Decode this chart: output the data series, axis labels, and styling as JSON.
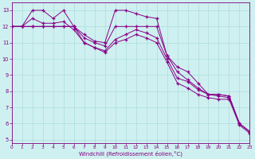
{
  "xlabel": "Windchill (Refroidissement éolien,°C)",
  "background_color": "#cff0f0",
  "grid_color": "#aadddd",
  "line_color": "#880088",
  "xlim": [
    0,
    23
  ],
  "ylim": [
    4.8,
    13.5
  ],
  "yticks": [
    5,
    6,
    7,
    8,
    9,
    10,
    11,
    12,
    13
  ],
  "xticks": [
    0,
    1,
    2,
    3,
    4,
    5,
    6,
    7,
    8,
    9,
    10,
    11,
    12,
    13,
    14,
    15,
    16,
    17,
    18,
    19,
    20,
    21,
    22,
    23
  ],
  "series": [
    [
      12.0,
      12.0,
      13.0,
      13.0,
      12.5,
      13.0,
      12.0,
      11.5,
      11.1,
      11.0,
      13.0,
      13.0,
      12.8,
      12.6,
      12.5,
      10.2,
      9.5,
      9.2,
      8.5,
      7.8,
      7.8,
      7.7,
      6.0,
      5.5
    ],
    [
      12.0,
      12.0,
      12.0,
      12.0,
      12.0,
      12.0,
      12.0,
      11.3,
      11.0,
      10.8,
      12.0,
      12.0,
      12.0,
      12.0,
      12.0,
      10.2,
      9.2,
      8.7,
      8.2,
      7.8,
      7.8,
      7.7,
      6.0,
      5.5
    ],
    [
      12.0,
      12.0,
      12.5,
      12.2,
      12.2,
      12.3,
      11.8,
      11.0,
      10.7,
      10.5,
      11.2,
      11.5,
      11.8,
      11.6,
      11.3,
      10.0,
      8.8,
      8.6,
      8.1,
      7.8,
      7.7,
      7.6,
      6.0,
      5.5
    ],
    [
      12.0,
      12.0,
      12.0,
      12.0,
      12.0,
      12.0,
      12.0,
      11.0,
      10.7,
      10.4,
      11.0,
      11.2,
      11.5,
      11.3,
      11.0,
      9.8,
      8.5,
      8.2,
      7.8,
      7.6,
      7.5,
      7.5,
      5.9,
      5.4
    ]
  ]
}
